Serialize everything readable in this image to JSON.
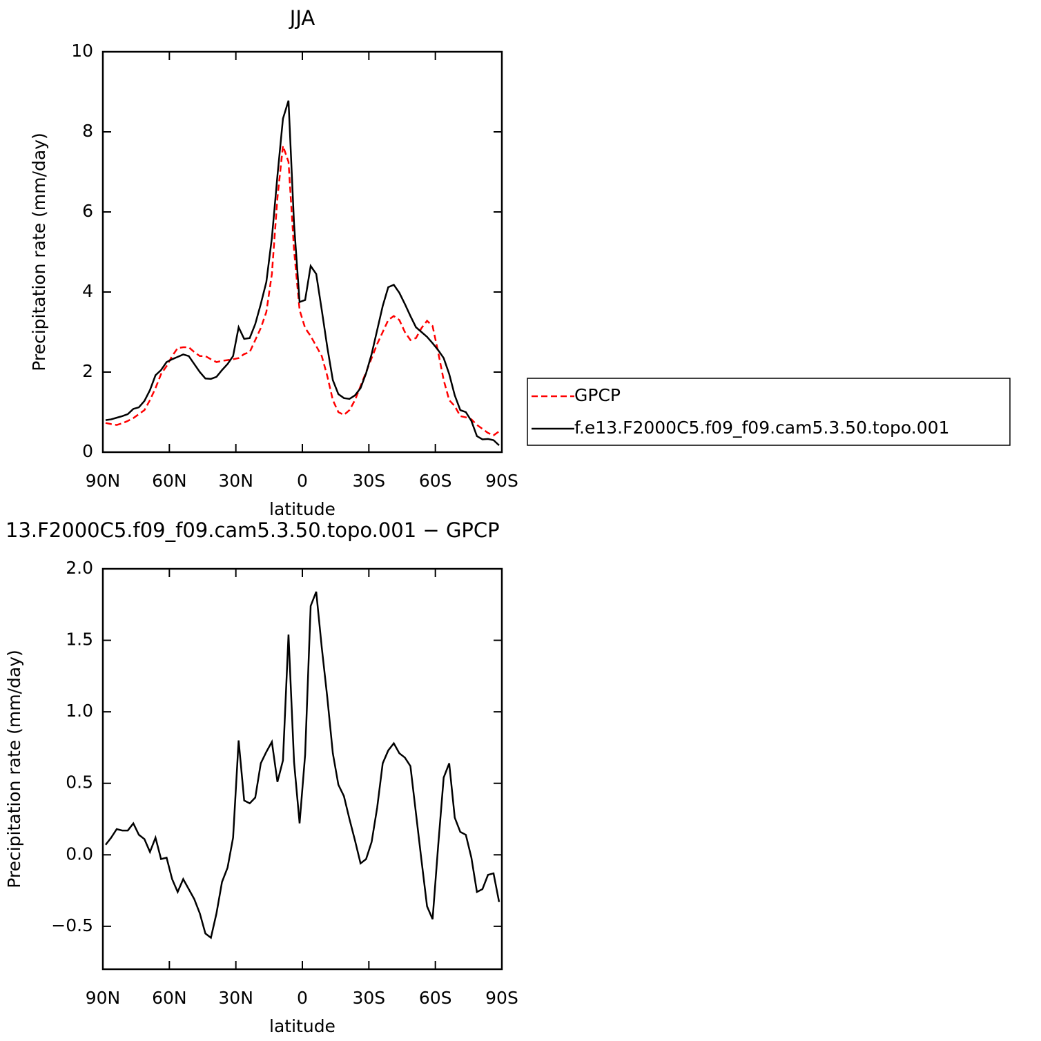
{
  "chart_data": [
    {
      "type": "line",
      "title": "JJA",
      "xlabel": "latitude",
      "ylabel": "Precipitation rate (mm/day)",
      "x": [
        88.75,
        86.25,
        83.75,
        81.25,
        78.75,
        76.25,
        73.75,
        71.25,
        68.75,
        66.25,
        63.75,
        61.25,
        58.75,
        56.25,
        53.75,
        51.25,
        48.75,
        46.25,
        43.75,
        41.25,
        38.75,
        36.25,
        33.75,
        31.25,
        28.75,
        26.25,
        23.75,
        21.25,
        18.75,
        16.25,
        13.75,
        11.25,
        8.75,
        6.25,
        3.75,
        1.25,
        -1.25,
        -3.75,
        -6.25,
        -8.75,
        -11.25,
        -13.75,
        -16.25,
        -18.75,
        -21.25,
        -23.75,
        -26.25,
        -28.75,
        -31.25,
        -33.75,
        -36.25,
        -38.75,
        -41.25,
        -43.75,
        -46.25,
        -48.75,
        -51.25,
        -53.75,
        -56.25,
        -58.75,
        -61.25,
        -63.75,
        -66.25,
        -68.75,
        -71.25,
        -73.75,
        -76.25,
        -78.75,
        -81.25,
        -83.75,
        -86.25,
        -88.75
      ],
      "series": [
        {
          "name": "GPCP",
          "color": "#ff0000",
          "style": "dashed",
          "values": [
            0.73,
            0.7,
            0.68,
            0.72,
            0.78,
            0.85,
            0.95,
            1.05,
            1.3,
            1.6,
            1.95,
            2.15,
            2.4,
            2.6,
            2.62,
            2.62,
            2.5,
            2.4,
            2.4,
            2.32,
            2.25,
            2.28,
            2.3,
            2.32,
            2.35,
            2.45,
            2.5,
            2.8,
            3.1,
            3.5,
            4.45,
            6.35,
            7.65,
            7.25,
            5.05,
            3.55,
            3.1,
            2.9,
            2.65,
            2.4,
            1.9,
            1.3,
            1.0,
            0.93,
            1.05,
            1.3,
            1.65,
            2.0,
            2.35,
            2.7,
            3.0,
            3.3,
            3.4,
            3.3,
            3.0,
            2.8,
            2.85,
            3.1,
            3.28,
            3.15,
            2.5,
            1.8,
            1.3,
            1.15,
            0.9,
            0.87,
            0.82,
            0.68,
            0.58,
            0.48,
            0.42,
            0.52
          ]
        },
        {
          "name": "f.e13.F2000C5.f09_f09.cam5.3.50.topo.001",
          "color": "#000000",
          "style": "solid",
          "values": [
            0.8,
            0.82,
            0.86,
            0.9,
            0.95,
            1.08,
            1.12,
            1.28,
            1.55,
            1.92,
            2.05,
            2.25,
            2.32,
            2.38,
            2.44,
            2.4,
            2.2,
            2.0,
            1.84,
            1.83,
            1.88,
            2.05,
            2.2,
            2.4,
            3.12,
            2.83,
            2.85,
            3.2,
            3.7,
            4.25,
            5.35,
            6.9,
            8.33,
            8.78,
            5.7,
            3.75,
            3.8,
            4.65,
            4.45,
            3.55,
            2.62,
            1.8,
            1.45,
            1.35,
            1.33,
            1.42,
            1.6,
            1.97,
            2.45,
            3.05,
            3.65,
            4.12,
            4.18,
            3.98,
            3.7,
            3.4,
            3.12,
            3.0,
            2.88,
            2.72,
            2.55,
            2.35,
            1.95,
            1.42,
            1.05,
            1.0,
            0.78,
            0.4,
            0.32,
            0.33,
            0.3,
            0.17
          ]
        }
      ],
      "xlim": [
        90,
        -90
      ],
      "xticks": [
        {
          "value": 90,
          "label": "90N"
        },
        {
          "value": 60,
          "label": "60N"
        },
        {
          "value": 30,
          "label": "30N"
        },
        0,
        {
          "value": -30,
          "label": "30S"
        },
        {
          "value": -60,
          "label": "60S"
        },
        {
          "value": -90,
          "label": "90S"
        }
      ],
      "ylim": [
        0,
        10
      ],
      "yticks": [
        0,
        2,
        4,
        6,
        8,
        10
      ],
      "legend": "outside-right"
    },
    {
      "type": "line",
      "title": "13.F2000C5.f09_f09.cam5.3.50.topo.001 − GPCP",
      "xlabel": "latitude",
      "ylabel": "Precipitation rate (mm/day)",
      "x": [
        88.75,
        86.25,
        83.75,
        81.25,
        78.75,
        76.25,
        73.75,
        71.25,
        68.75,
        66.25,
        63.75,
        61.25,
        58.75,
        56.25,
        53.75,
        51.25,
        48.75,
        46.25,
        43.75,
        41.25,
        38.75,
        36.25,
        33.75,
        31.25,
        28.75,
        26.25,
        23.75,
        21.25,
        18.75,
        16.25,
        13.75,
        11.25,
        8.75,
        6.25,
        3.75,
        1.25,
        -1.25,
        -3.75,
        -6.25,
        -8.75,
        -11.25,
        -13.75,
        -16.25,
        -18.75,
        -21.25,
        -23.75,
        -26.25,
        -28.75,
        -31.25,
        -33.75,
        -36.25,
        -38.75,
        -41.25,
        -43.75,
        -46.25,
        -48.75,
        -51.25,
        -53.75,
        -56.25,
        -58.75,
        -61.25,
        -63.75,
        -66.25,
        -68.75,
        -71.25,
        -73.75,
        -76.25,
        -78.75,
        -81.25,
        -83.75,
        -86.25,
        -88.75
      ],
      "series": [
        {
          "color": "#000000",
          "style": "solid",
          "values": [
            0.07,
            0.12,
            0.18,
            0.17,
            0.17,
            0.22,
            0.14,
            0.11,
            0.02,
            0.12,
            -0.03,
            -0.02,
            -0.17,
            -0.26,
            -0.17,
            -0.24,
            -0.31,
            -0.41,
            -0.55,
            -0.58,
            -0.41,
            -0.19,
            -0.09,
            0.12,
            0.8,
            0.38,
            0.36,
            0.4,
            0.64,
            0.72,
            0.79,
            0.51,
            0.66,
            1.54,
            0.65,
            0.22,
            0.7,
            1.74,
            1.84,
            1.45,
            1.1,
            0.71,
            0.49,
            0.41,
            0.25,
            0.1,
            -0.06,
            -0.03,
            0.09,
            0.33,
            0.64,
            0.73,
            0.78,
            0.71,
            0.68,
            0.62,
            0.29,
            -0.04,
            -0.36,
            -0.45,
            0.06,
            0.54,
            0.64,
            0.26,
            0.16,
            0.14,
            -0.02,
            -0.26,
            -0.24,
            -0.14,
            -0.13,
            -0.33
          ]
        }
      ],
      "xlim": [
        90,
        -90
      ],
      "xticks": [
        {
          "value": 90,
          "label": "90N"
        },
        {
          "value": 60,
          "label": "60N"
        },
        {
          "value": 30,
          "label": "30N"
        },
        0,
        {
          "value": -30,
          "label": "30S"
        },
        {
          "value": -60,
          "label": "60S"
        },
        {
          "value": -90,
          "label": "90S"
        }
      ],
      "ylim": [
        -0.8,
        2.0
      ],
      "yticks": [
        {
          "value": -0.5,
          "label": "−0.5"
        },
        {
          "value": 0,
          "label": "0.0"
        },
        {
          "value": 0.5,
          "label": "0.5"
        },
        {
          "value": 1,
          "label": "1.0"
        },
        {
          "value": 1.5,
          "label": "1.5"
        },
        {
          "value": 2,
          "label": "2.0"
        }
      ]
    }
  ]
}
